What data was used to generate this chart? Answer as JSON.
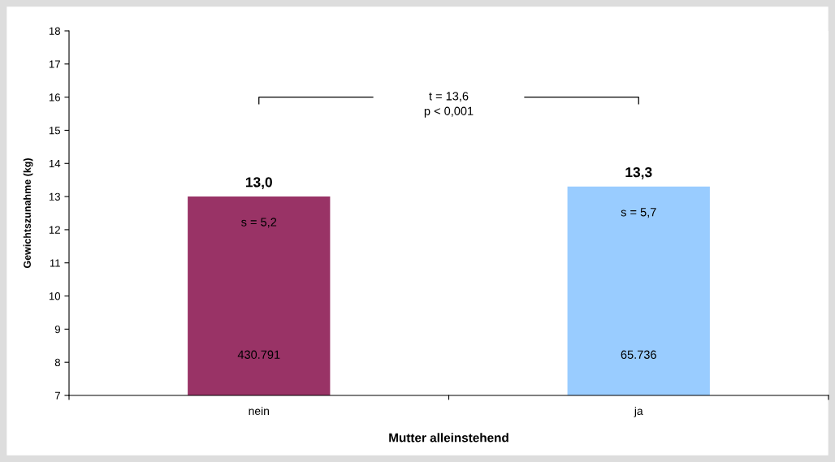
{
  "chart_data": {
    "type": "bar",
    "xlabel": "Mutter alleinstehend",
    "ylabel": "Gewichtszunahme (kg)",
    "categories": [
      "nein",
      "ja"
    ],
    "values": [
      13.0,
      13.3
    ],
    "colors": [
      "#993366",
      "#99ccff"
    ],
    "value_labels": [
      "13,0",
      "13,3"
    ],
    "ylim": [
      7,
      18
    ],
    "yticks": [
      7,
      8,
      9,
      10,
      11,
      12,
      13,
      14,
      15,
      16,
      17,
      18
    ],
    "annotations": [
      "s = 5,2",
      "430.791",
      "s = 5,7",
      "65.736",
      "t = 13,6",
      "p < 0,001"
    ]
  }
}
